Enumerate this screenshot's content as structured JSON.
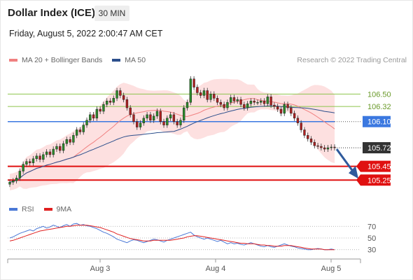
{
  "header": {
    "title": "Dollar Index (ICE)",
    "interval": "30 MIN",
    "datetime": "Friday, August 5, 2022 2:00:47 AM CET",
    "credit": "Research © 2022 Trading Central"
  },
  "legend_main": [
    {
      "label": "MA 20 + Bollinger Bands",
      "color": "#f08080"
    },
    {
      "label": "MA 50",
      "color": "#2c4f8c"
    }
  ],
  "legend_rsi": [
    {
      "label": "RSI",
      "color": "#4a78d6"
    },
    {
      "label": "9MA",
      "color": "#e02020"
    }
  ],
  "colors": {
    "up": "#2a8c2a",
    "down": "#b02020",
    "resistance": "#8dc44b",
    "pivot": "#3b78e0",
    "support": "#e01010",
    "arrow": "#2f5a9c"
  },
  "chart_data": [
    {
      "type": "candlestick",
      "ylim": [
        105.1,
        106.85
      ],
      "x_ticks": [
        "Aug 3",
        "Aug 4",
        "Aug 5"
      ],
      "levels": [
        {
          "label": "106.50",
          "value": 106.5,
          "kind": "resistance"
        },
        {
          "label": "106.32",
          "value": 106.32,
          "kind": "resistance"
        },
        {
          "label": "106.10",
          "value": 106.1,
          "kind": "pivot"
        },
        {
          "label": "105.72",
          "value": 105.72,
          "kind": "last"
        },
        {
          "label": "105.45",
          "value": 105.45,
          "kind": "support"
        },
        {
          "label": "105.25",
          "value": 105.25,
          "kind": "support"
        }
      ],
      "close": [
        105.22,
        105.24,
        105.28,
        105.38,
        105.48,
        105.52,
        105.5,
        105.56,
        105.6,
        105.55,
        105.62,
        105.66,
        105.62,
        105.7,
        105.74,
        105.68,
        105.78,
        105.84,
        105.8,
        105.9,
        105.98,
        105.95,
        106.05,
        106.12,
        106.2,
        106.15,
        106.28,
        106.25,
        106.35,
        106.4,
        106.38,
        106.44,
        106.55,
        106.48,
        106.42,
        106.3,
        106.2,
        106.1,
        106.02,
        106.08,
        106.15,
        106.2,
        106.12,
        106.18,
        106.25,
        106.1,
        106.05,
        106.15,
        106.2,
        106.1,
        106.05,
        106.12,
        106.3,
        106.38,
        106.72,
        106.6,
        106.52,
        106.48,
        106.55,
        106.42,
        106.5,
        106.44,
        106.38,
        106.35,
        106.3,
        106.38,
        106.45,
        106.4,
        106.42,
        106.35,
        106.3,
        106.36,
        106.4,
        106.38,
        106.38,
        106.4,
        106.36,
        106.46,
        106.34,
        106.32,
        106.28,
        106.22,
        106.35,
        106.3,
        106.22,
        106.15,
        106.08,
        105.98,
        105.9,
        105.85,
        105.8,
        105.75,
        105.74,
        105.72,
        105.7,
        105.72,
        105.73,
        105.72
      ]
    },
    {
      "type": "line",
      "ylim": [
        20,
        80
      ],
      "y_ticks": [
        70,
        50,
        30
      ],
      "series": [
        {
          "name": "RSI",
          "values": [
            50,
            52,
            55,
            58,
            60,
            62,
            64,
            62,
            66,
            68,
            70,
            67,
            69,
            72,
            70,
            68,
            71,
            73,
            70,
            74,
            75,
            72,
            73,
            71,
            70,
            68,
            66,
            63,
            60,
            58,
            55,
            52,
            48,
            46,
            44,
            42,
            45,
            47,
            46,
            44,
            42,
            44,
            46,
            48,
            47,
            45,
            43,
            46,
            48,
            50,
            52,
            54,
            56,
            58,
            60,
            55,
            52,
            50,
            48,
            50,
            48,
            46,
            44,
            46,
            43,
            40,
            42,
            40,
            41,
            39,
            38,
            40,
            42,
            40,
            38,
            36,
            35,
            37,
            35,
            34,
            36,
            38,
            40,
            38,
            36,
            35,
            33,
            32,
            31,
            30,
            30,
            31,
            32,
            31,
            30,
            30,
            31,
            30
          ]
        },
        {
          "name": "9MA",
          "values": [
            45,
            46,
            48,
            50,
            52,
            54,
            56,
            58,
            60,
            62,
            63,
            64,
            65,
            66,
            67,
            68,
            69,
            70,
            70,
            71,
            72,
            72,
            72,
            72,
            71,
            70,
            69,
            68,
            66,
            64,
            62,
            60,
            57,
            55,
            53,
            51,
            49,
            48,
            47,
            46,
            45,
            45,
            45,
            46,
            46,
            46,
            46,
            46,
            46,
            47,
            48,
            49,
            50,
            52,
            53,
            54,
            54,
            53,
            52,
            51,
            50,
            49,
            48,
            47,
            46,
            45,
            44,
            43,
            42,
            41,
            41,
            40,
            40,
            40,
            39,
            38,
            38,
            37,
            37,
            36,
            36,
            36,
            37,
            37,
            37,
            36,
            35,
            34,
            33,
            32,
            31,
            31,
            31,
            31,
            30,
            30,
            30,
            30
          ]
        }
      ]
    }
  ]
}
